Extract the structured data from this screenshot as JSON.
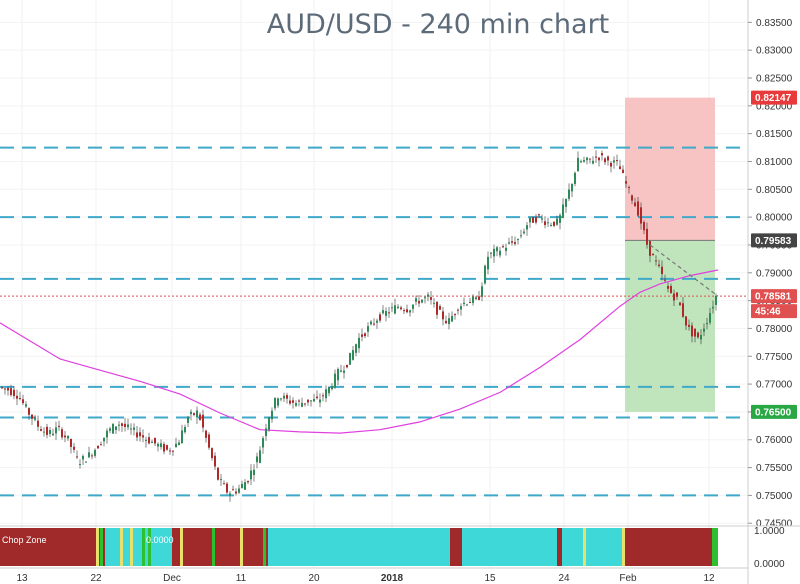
{
  "chart_data": {
    "type": "candlestick",
    "title": "AUD/USD - 240 min chart",
    "y_ticks": [
      "0.83500",
      "0.83000",
      "0.82500",
      "0.82000",
      "0.81500",
      "0.81000",
      "0.80500",
      "0.80000",
      "0.79500",
      "0.79000",
      "0.78500",
      "0.78000",
      "0.77500",
      "0.77000",
      "0.76500",
      "0.76000",
      "0.75500",
      "0.75000",
      "0.74500"
    ],
    "ylim": [
      0.7445,
      0.8365
    ],
    "x_ticks": [
      {
        "label": "13",
        "bold": false
      },
      {
        "label": "22",
        "bold": false
      },
      {
        "label": "Dec",
        "bold": false
      },
      {
        "label": "11",
        "bold": false
      },
      {
        "label": "20",
        "bold": false
      },
      {
        "label": "2018",
        "bold": true
      },
      {
        "label": "15",
        "bold": false
      },
      {
        "label": "24",
        "bold": false
      },
      {
        "label": "Feb",
        "bold": false
      },
      {
        "label": "12",
        "bold": false
      }
    ],
    "horizontal_levels": [
      0.8125,
      0.8,
      0.7889,
      0.7695,
      0.764,
      0.75
    ],
    "price_path": [
      [
        0,
        0.7695
      ],
      [
        10,
        0.769
      ],
      [
        20,
        0.768
      ],
      [
        30,
        0.765
      ],
      [
        40,
        0.7625
      ],
      [
        50,
        0.761
      ],
      [
        60,
        0.762
      ],
      [
        70,
        0.76
      ],
      [
        80,
        0.756
      ],
      [
        90,
        0.757
      ],
      [
        100,
        0.759
      ],
      [
        110,
        0.7615
      ],
      [
        120,
        0.763
      ],
      [
        130,
        0.762
      ],
      [
        140,
        0.761
      ],
      [
        150,
        0.76
      ],
      [
        160,
        0.759
      ],
      [
        170,
        0.758
      ],
      [
        180,
        0.7595
      ],
      [
        190,
        0.764
      ],
      [
        200,
        0.765
      ],
      [
        210,
        0.759
      ],
      [
        220,
        0.753
      ],
      [
        230,
        0.7505
      ],
      [
        240,
        0.751
      ],
      [
        250,
        0.753
      ],
      [
        260,
        0.757
      ],
      [
        270,
        0.764
      ],
      [
        280,
        0.768
      ],
      [
        290,
        0.767
      ],
      [
        300,
        0.7665
      ],
      [
        310,
        0.767
      ],
      [
        320,
        0.767
      ],
      [
        330,
        0.769
      ],
      [
        340,
        0.772
      ],
      [
        350,
        0.774
      ],
      [
        360,
        0.778
      ],
      [
        370,
        0.78
      ],
      [
        380,
        0.782
      ],
      [
        390,
        0.783
      ],
      [
        400,
        0.784
      ],
      [
        410,
        0.7835
      ],
      [
        420,
        0.785
      ],
      [
        430,
        0.7855
      ],
      [
        440,
        0.783
      ],
      [
        450,
        0.781
      ],
      [
        460,
        0.784
      ],
      [
        470,
        0.785
      ],
      [
        480,
        0.785
      ],
      [
        490,
        0.793
      ],
      [
        500,
        0.794
      ],
      [
        510,
        0.795
      ],
      [
        520,
        0.796
      ],
      [
        530,
        0.799
      ],
      [
        540,
        0.8
      ],
      [
        550,
        0.799
      ],
      [
        560,
        0.799
      ],
      [
        570,
        0.804
      ],
      [
        580,
        0.81
      ],
      [
        590,
        0.81
      ],
      [
        600,
        0.811
      ],
      [
        610,
        0.81
      ],
      [
        620,
        0.8095
      ],
      [
        630,
        0.805
      ],
      [
        640,
        0.801
      ],
      [
        650,
        0.7945
      ],
      [
        660,
        0.791
      ],
      [
        670,
        0.787
      ],
      [
        680,
        0.785
      ],
      [
        690,
        0.78
      ],
      [
        700,
        0.778
      ],
      [
        710,
        0.782
      ],
      [
        718,
        0.7858
      ]
    ],
    "moving_average": [
      [
        0,
        0.781
      ],
      [
        60,
        0.7745
      ],
      [
        100,
        0.7725
      ],
      [
        140,
        0.7705
      ],
      [
        180,
        0.7682
      ],
      [
        220,
        0.7648
      ],
      [
        260,
        0.7618
      ],
      [
        300,
        0.7614
      ],
      [
        340,
        0.7612
      ],
      [
        380,
        0.7618
      ],
      [
        420,
        0.7632
      ],
      [
        460,
        0.7655
      ],
      [
        500,
        0.7685
      ],
      [
        540,
        0.773
      ],
      [
        580,
        0.778
      ],
      [
        620,
        0.784
      ],
      [
        640,
        0.7865
      ],
      [
        660,
        0.788
      ],
      [
        690,
        0.7895
      ],
      [
        718,
        0.7905
      ]
    ],
    "trade_box": {
      "x_start": 625,
      "x_end": 715,
      "stop_loss": 0.82147,
      "entry": 0.79583,
      "take_profit": 0.765
    },
    "trend_line": [
      [
        650,
        0.795
      ],
      [
        718,
        0.7858
      ]
    ],
    "current_price": 0.78581,
    "current_price_label": "0.78581",
    "countdown_label": "45:46",
    "stop_label": "0.82147",
    "entry_label": "0.79583",
    "target_label": "0.76500",
    "indicator": {
      "label": "Chop Zone",
      "value_label": "0.0000",
      "ticks": [
        "1.0000",
        "0.0000"
      ]
    },
    "colors": {
      "up": "#2e8b57",
      "down": "#b02828",
      "ma": "#e040e0",
      "level": "#3fa9c9",
      "stop_zone": "#f6b8b8",
      "profit_zone": "#b5dfb0",
      "price_line": "#e05050"
    }
  }
}
